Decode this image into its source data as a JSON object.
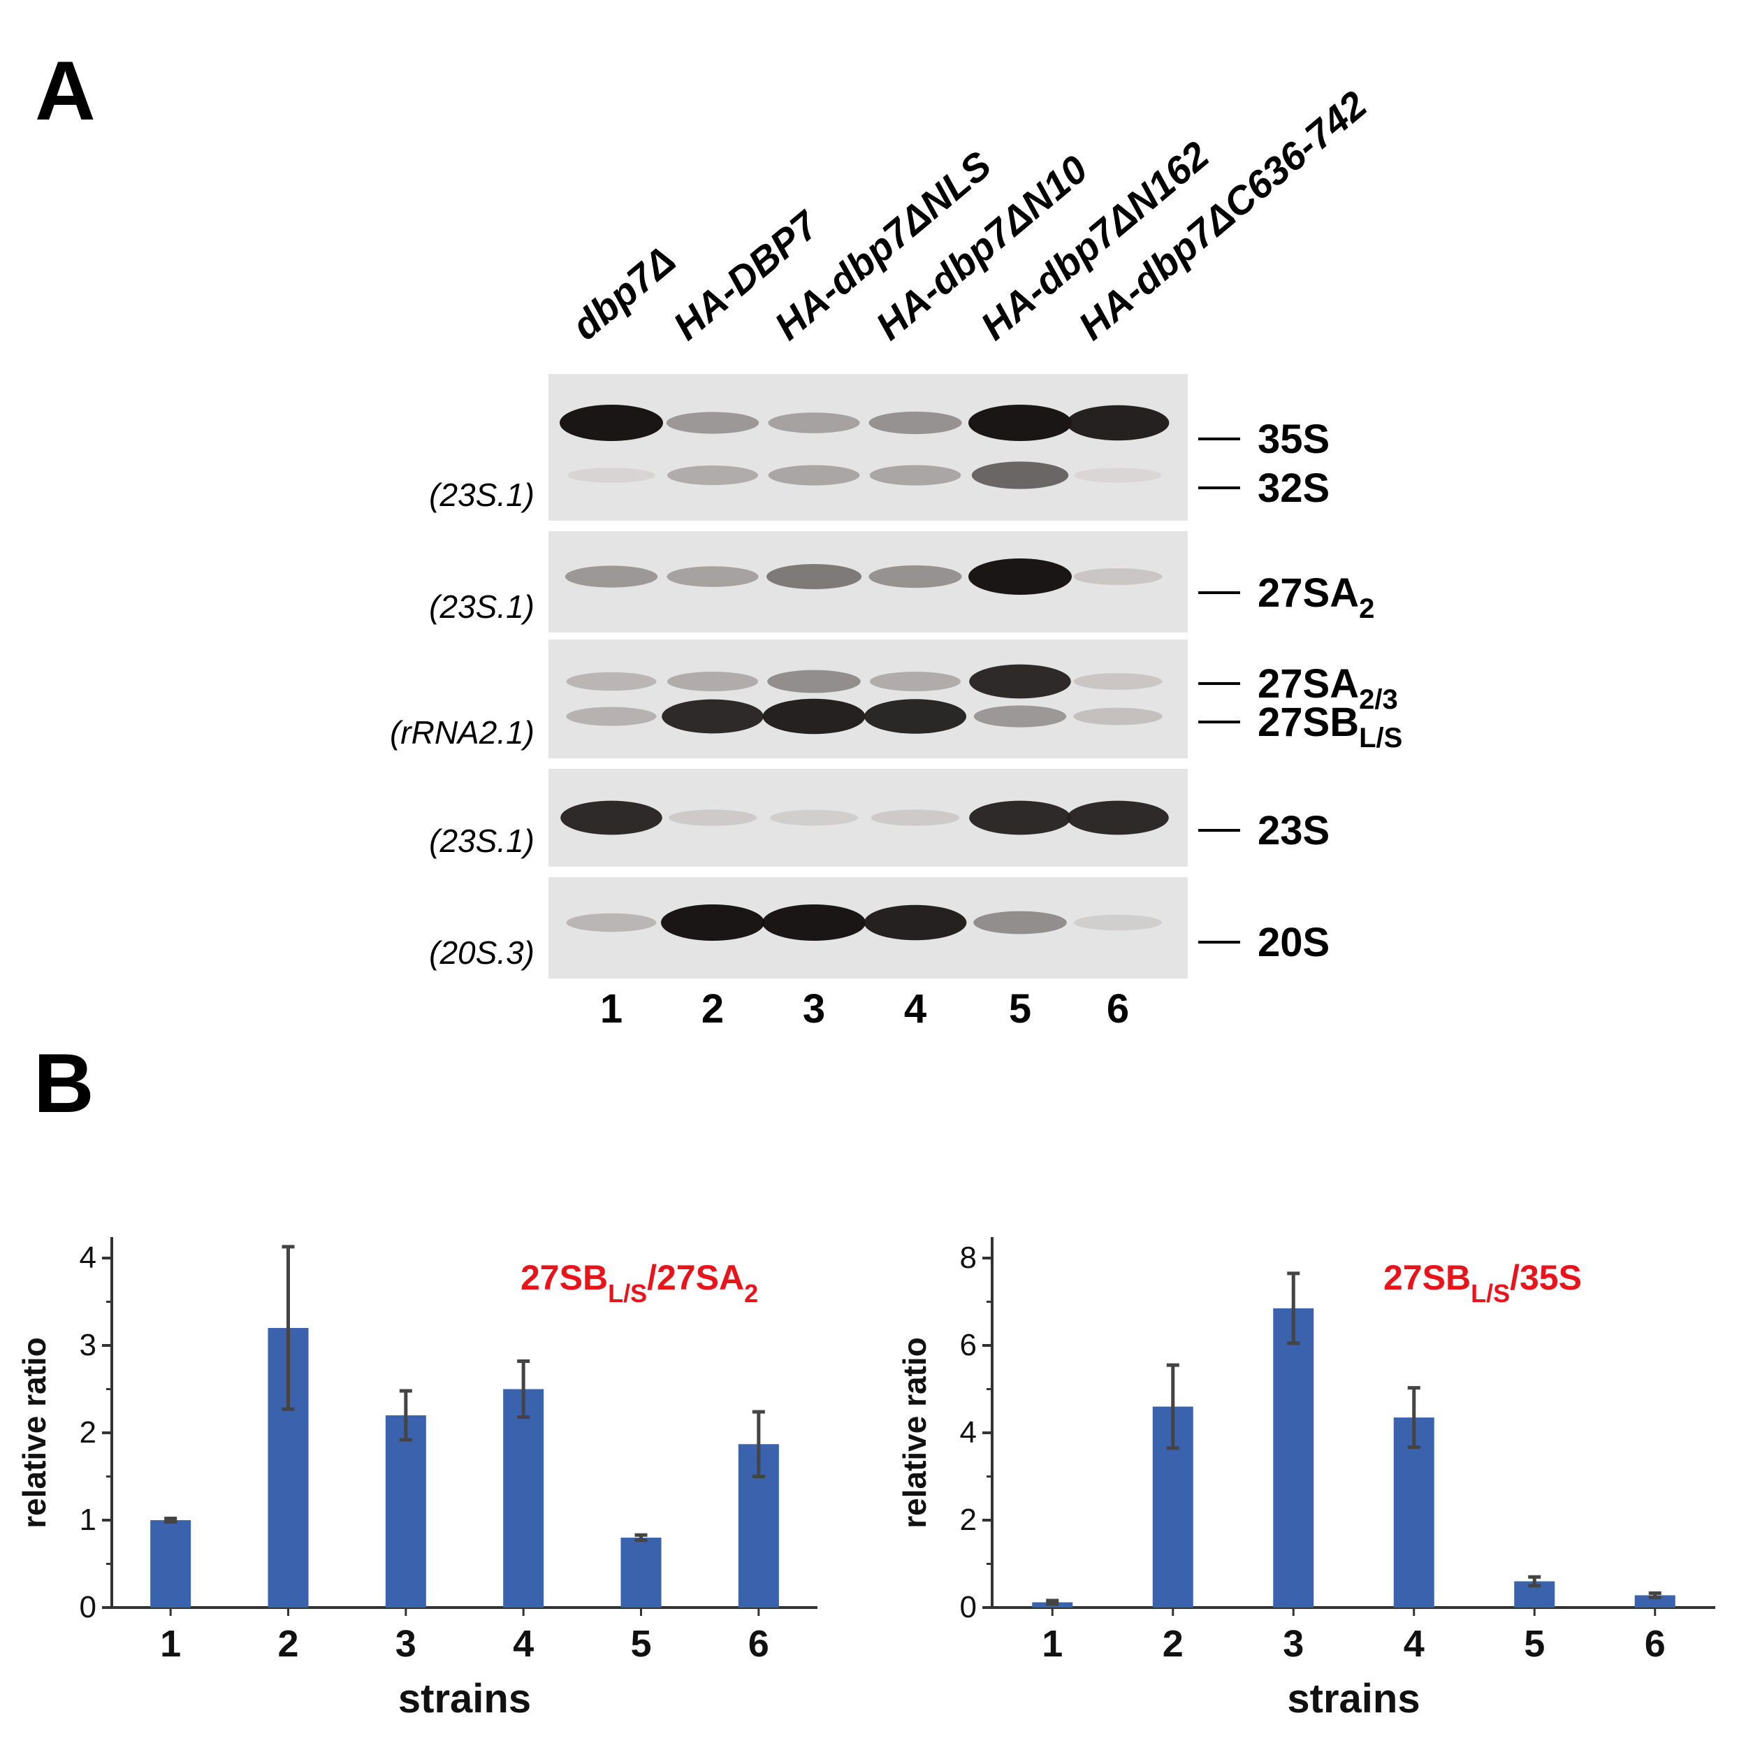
{
  "panels": {
    "a": "A",
    "b": "B"
  },
  "lane_headers": [
    "dbp7Δ",
    "HA-DBP7",
    "HA-dbp7ΔNLS",
    "HA-dbp7ΔN10",
    "HA-dbp7ΔN162",
    "HA-dbp7ΔC636-742"
  ],
  "lane_numbers": [
    "1",
    "2",
    "3",
    "4",
    "5",
    "6"
  ],
  "blots": [
    {
      "probe": "(23S.1)",
      "bands": [
        {
          "name": "35S",
          "intensity": [
            1.0,
            0.35,
            0.3,
            0.38,
            1.0,
            0.95
          ]
        },
        {
          "name": "32S",
          "intensity": [
            0.05,
            0.25,
            0.28,
            0.28,
            0.6,
            0.04
          ]
        }
      ]
    },
    {
      "probe": "(23S.1)",
      "bands": [
        {
          "name": "27SA",
          "sub": "2",
          "intensity": [
            0.35,
            0.3,
            0.5,
            0.38,
            1.0,
            0.12
          ]
        }
      ]
    },
    {
      "probe": "(rRNA2.1)",
      "bands": [
        {
          "name": "27SA",
          "sub": "2/3",
          "intensity": [
            0.2,
            0.25,
            0.4,
            0.25,
            0.9,
            0.12
          ]
        },
        {
          "name": "27SB",
          "sub": "L/S",
          "intensity": [
            0.22,
            0.9,
            0.95,
            0.92,
            0.35,
            0.15
          ]
        }
      ]
    },
    {
      "probe": "(23S.1)",
      "bands": [
        {
          "name": "23S",
          "intensity": [
            0.9,
            0.1,
            0.08,
            0.1,
            0.9,
            0.9
          ]
        }
      ]
    },
    {
      "probe": "(20S.3)",
      "bands": [
        {
          "name": "20S",
          "intensity": [
            0.2,
            1.0,
            1.0,
            0.95,
            0.4,
            0.08
          ]
        }
      ]
    }
  ],
  "chart_data": [
    {
      "type": "bar",
      "title_main": "27SB",
      "title_sub": "L/S",
      "title_rest": "/27SA",
      "title_sub2": "2",
      "xlabel": "strains",
      "ylabel": "relative ratio",
      "categories": [
        "1",
        "2",
        "3",
        "4",
        "5",
        "6"
      ],
      "values": [
        1.0,
        3.2,
        2.2,
        2.5,
        0.8,
        1.87
      ],
      "errors": [
        0.02,
        0.93,
        0.28,
        0.32,
        0.03,
        0.37
      ],
      "ylim": [
        0,
        4
      ],
      "yticks": [
        0,
        1,
        2,
        3,
        4
      ],
      "colors": {
        "bar": "#3a62ad",
        "error": "#444444",
        "title": "#e8141b"
      }
    },
    {
      "type": "bar",
      "title_main": "27SB",
      "title_sub": "L/S",
      "title_rest": "/35S",
      "title_sub2": "",
      "xlabel": "strains",
      "ylabel": "relative ratio",
      "categories": [
        "1",
        "2",
        "3",
        "4",
        "5",
        "6"
      ],
      "values": [
        0.12,
        4.6,
        6.85,
        4.35,
        0.6,
        0.28
      ],
      "errors": [
        0.04,
        0.95,
        0.8,
        0.68,
        0.1,
        0.05
      ],
      "ylim": [
        0,
        8
      ],
      "yticks": [
        0,
        2,
        4,
        6,
        8
      ],
      "colors": {
        "bar": "#3a62ad",
        "error": "#444444",
        "title": "#e8141b"
      }
    }
  ]
}
